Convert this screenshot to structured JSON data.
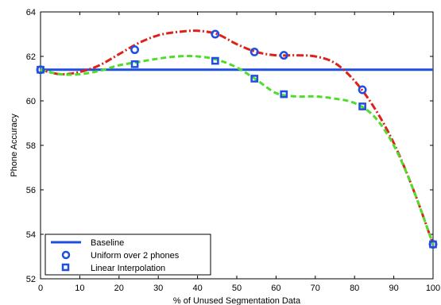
{
  "chart_data": {
    "type": "line",
    "title": "",
    "xlabel": "% of Unused Segmentation Data",
    "ylabel": "Phone Accuracy",
    "xlim": [
      0,
      100
    ],
    "ylim": [
      52,
      64
    ],
    "xticks": [
      0,
      10,
      20,
      30,
      40,
      50,
      60,
      70,
      80,
      90,
      100
    ],
    "yticks": [
      52,
      54,
      56,
      58,
      60,
      62,
      64
    ],
    "grid": false,
    "legend_position": "bottom-left",
    "baseline": {
      "name": "Baseline",
      "value": 61.4,
      "color": "#1f4fe0"
    },
    "series": [
      {
        "name": "Uniform over 2 phones",
        "marker": "circle",
        "marker_color": "#1f4fe0",
        "curve_color": "#e0201a",
        "x": [
          0,
          24,
          44.5,
          54.5,
          62,
          82,
          100
        ],
        "values": [
          61.4,
          62.3,
          63.0,
          62.2,
          62.05,
          60.5,
          53.55
        ],
        "curve_x": [
          0,
          5,
          10,
          15,
          20,
          25,
          30,
          35,
          40,
          45,
          50,
          55,
          60,
          65,
          70,
          75,
          80,
          85,
          90,
          95,
          100
        ],
        "curve_y": [
          61.4,
          61.2,
          61.3,
          61.6,
          62.1,
          62.6,
          62.95,
          63.1,
          63.15,
          63.0,
          62.55,
          62.2,
          62.05,
          62.05,
          62.0,
          61.7,
          60.9,
          59.7,
          58.1,
          56.0,
          53.55
        ]
      },
      {
        "name": "Linear Interpolation",
        "marker": "square",
        "marker_color": "#1f4fe0",
        "curve_color": "#4fdc2a",
        "x": [
          0,
          24,
          44.5,
          54.5,
          62,
          82,
          100
        ],
        "values": [
          61.4,
          61.65,
          61.8,
          61.0,
          60.3,
          59.75,
          53.55
        ],
        "curve_x": [
          0,
          5,
          10,
          15,
          20,
          25,
          30,
          35,
          40,
          45,
          50,
          55,
          60,
          65,
          70,
          75,
          80,
          85,
          90,
          95,
          100
        ],
        "curve_y": [
          61.4,
          61.2,
          61.2,
          61.35,
          61.6,
          61.75,
          61.9,
          62.0,
          62.0,
          61.85,
          61.5,
          60.95,
          60.35,
          60.2,
          60.2,
          60.1,
          59.9,
          59.3,
          58.0,
          56.0,
          53.55
        ]
      }
    ]
  }
}
